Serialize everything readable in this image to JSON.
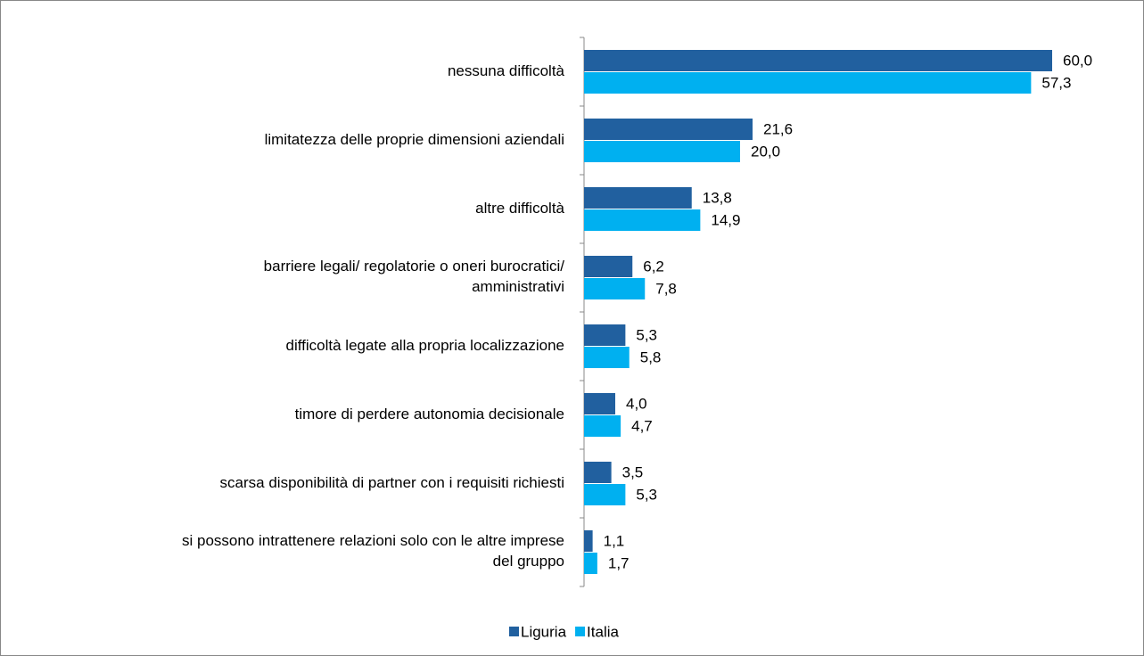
{
  "chart_data": {
    "type": "bar",
    "orientation": "horizontal",
    "categories": [
      "nessuna difficoltà",
      "limitatezza delle proprie dimensioni aziendali",
      "altre difficoltà",
      "barriere legali/ regolatorie o oneri burocratici/\namministrativi",
      "difficoltà legate alla propria localizzazione",
      "timore di perdere autonomia decisionale",
      "scarsa disponibilità di partner con i requisiti richiesti",
      "si possono intrattenere relazioni solo con le altre imprese\ndel gruppo"
    ],
    "series": [
      {
        "name": "Liguria",
        "color": "#21609f",
        "values": [
          60.0,
          21.6,
          13.8,
          6.2,
          5.3,
          4.0,
          3.5,
          1.1
        ],
        "value_labels": [
          "60,0",
          "21,6",
          "13,8",
          "6,2",
          "5,3",
          "4,0",
          "3,5",
          "1,1"
        ]
      },
      {
        "name": "Italia",
        "color": "#00b0f0",
        "values": [
          57.3,
          20.0,
          14.9,
          7.8,
          5.8,
          4.7,
          5.3,
          1.7
        ],
        "value_labels": [
          "57,3",
          "20,0",
          "14,9",
          "7,8",
          "5,8",
          "4,7",
          "5,3",
          "1,7"
        ]
      }
    ],
    "legend": "bottom"
  }
}
